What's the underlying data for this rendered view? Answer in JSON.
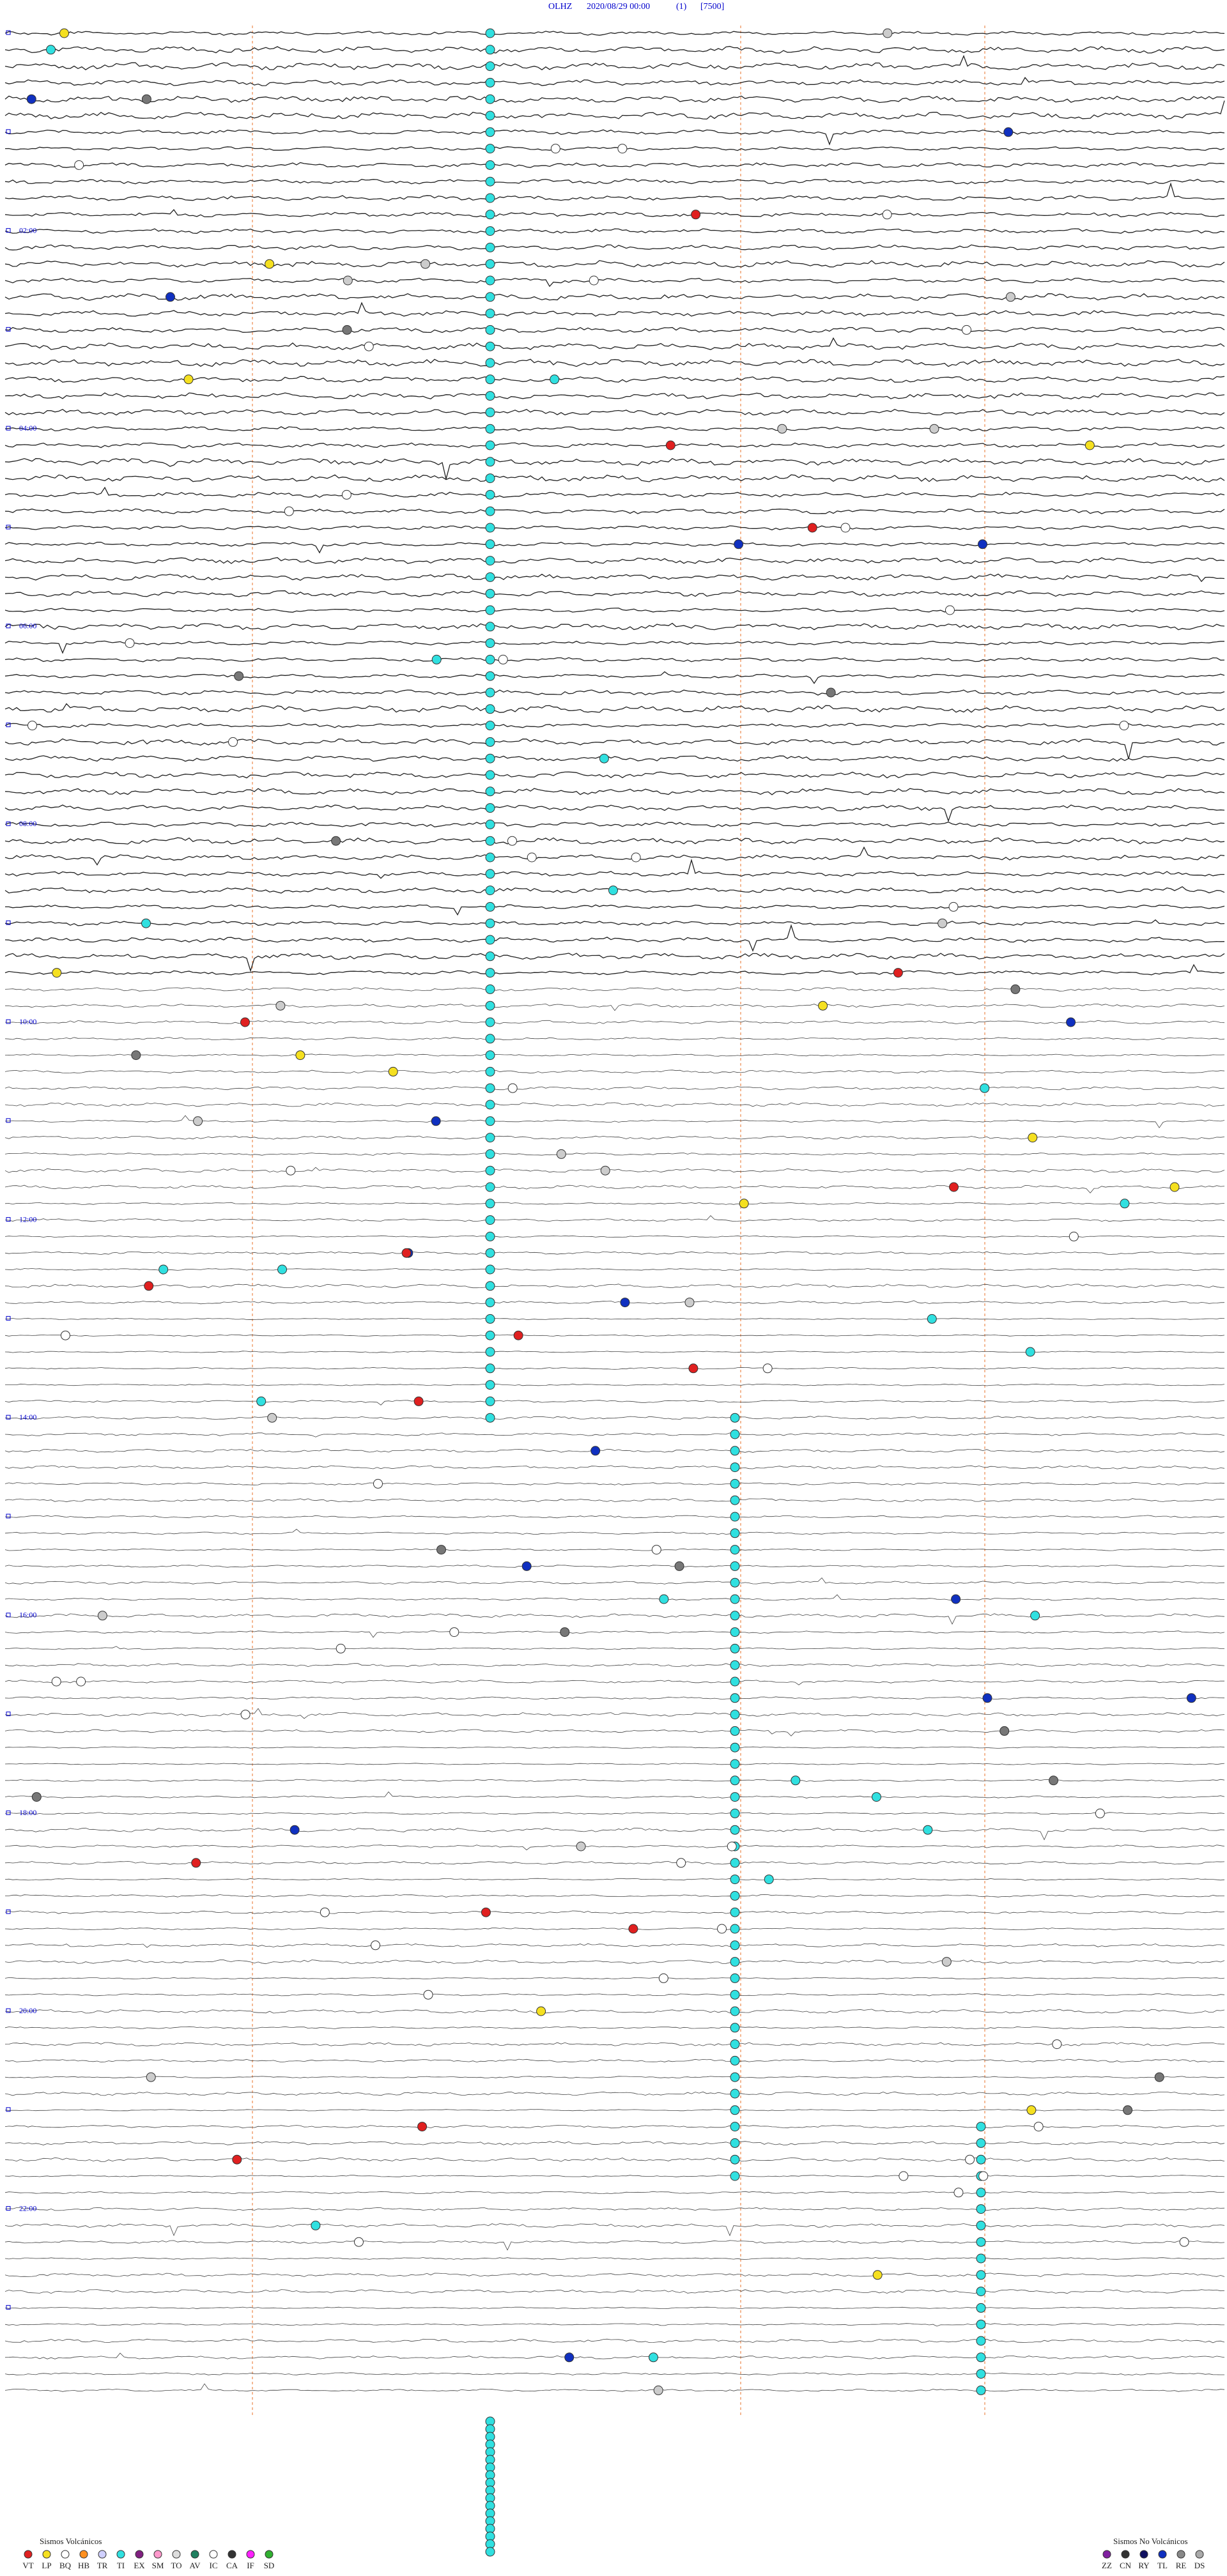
{
  "header": {
    "station": "OLHZ",
    "datetime": "2020/08/29 00:00",
    "channel": "(1)",
    "scale": "[7500]"
  },
  "time_labels": [
    "02:00",
    "04:00",
    "06:00",
    "08:00",
    "10:00",
    "12:00",
    "14:00",
    "16:00",
    "18:00",
    "20:00",
    "22:00"
  ],
  "legend": {
    "volcanic": {
      "title": "Sismos Volcánicos",
      "codes": [
        "VT",
        "LP",
        "BQ",
        "HB",
        "TR",
        "TI",
        "EX",
        "SM",
        "TO",
        "AV",
        "IC",
        "CA",
        "IF",
        "SD"
      ]
    },
    "non_volcanic": {
      "title": "Sismos No Volcánicos",
      "codes": [
        "ZZ",
        "CN",
        "RY",
        "TL",
        "RE",
        "DS"
      ]
    }
  }
}
